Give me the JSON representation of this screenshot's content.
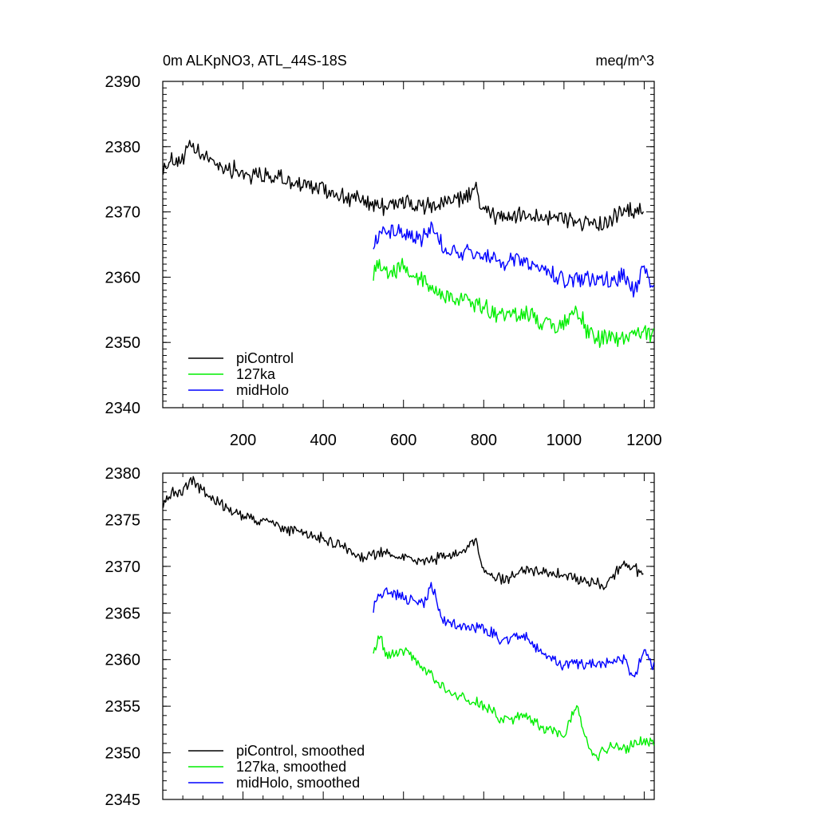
{
  "chart_data": [
    {
      "type": "line",
      "title_left": "0m ALKpNO3, ATL_44S-18S",
      "title_right": "meq/m^3",
      "xlabel": "",
      "ylabel": "",
      "xlim": [
        0,
        1225
      ],
      "ylim": [
        2340,
        2390
      ],
      "xticks": [
        200,
        400,
        600,
        800,
        1000,
        1200
      ],
      "xtick_labels": [
        "200",
        "400",
        "600",
        "800",
        "1000",
        "1200"
      ],
      "yticks": [
        2340,
        2350,
        2360,
        2370,
        2380,
        2390
      ],
      "ytick_labels": [
        "2340",
        "2350",
        "2360",
        "2370",
        "2380",
        "2390"
      ],
      "legend_position": "bottom-left",
      "series": [
        {
          "name": "piControl",
          "color": "#000000",
          "x": [
            1,
            25,
            50,
            70,
            100,
            150,
            200,
            250,
            300,
            350,
            400,
            450,
            500,
            550,
            600,
            650,
            700,
            750,
            780,
            800,
            850,
            900,
            950,
            1000,
            1050,
            1100,
            1150,
            1200
          ],
          "y": [
            2377,
            2378,
            2378,
            2380,
            2378.5,
            2377,
            2376,
            2375.5,
            2375,
            2374,
            2373.5,
            2372.5,
            2371.5,
            2371,
            2371.5,
            2370.5,
            2371.5,
            2372,
            2373.5,
            2370,
            2369,
            2369.5,
            2369.5,
            2369,
            2368.5,
            2368,
            2370,
            2370
          ]
        },
        {
          "name": "127ka",
          "color": "#00ee00",
          "x": [
            525,
            540,
            560,
            600,
            650,
            700,
            750,
            800,
            850,
            900,
            950,
            1000,
            1030,
            1060,
            1080,
            1100,
            1150,
            1200,
            1225
          ],
          "y": [
            2361,
            2363,
            2360.5,
            2361.5,
            2359.5,
            2357,
            2356.5,
            2355.5,
            2354,
            2354.5,
            2353,
            2352.5,
            2355.5,
            2351.5,
            2350,
            2351,
            2351,
            2351.5,
            2351
          ]
        },
        {
          "name": "midHolo",
          "color": "#0000ff",
          "x": [
            525,
            550,
            600,
            650,
            670,
            700,
            750,
            800,
            850,
            900,
            950,
            1000,
            1050,
            1100,
            1150,
            1175,
            1200,
            1225
          ],
          "y": [
            2365,
            2367.5,
            2366.5,
            2366,
            2368.5,
            2364,
            2363.5,
            2363.5,
            2362,
            2362.5,
            2361,
            2359.5,
            2359.5,
            2359.5,
            2360,
            2358,
            2361,
            2359
          ]
        }
      ]
    },
    {
      "type": "line",
      "xlabel": "",
      "ylabel": "",
      "xlim": [
        0,
        1225
      ],
      "ylim": [
        2345,
        2380
      ],
      "xticks": [
        200,
        400,
        600,
        800,
        1000,
        1200
      ],
      "yticks": [
        2345,
        2350,
        2355,
        2360,
        2365,
        2370,
        2375,
        2380
      ],
      "ytick_labels": [
        "2345",
        "2350",
        "2355",
        "2360",
        "2365",
        "2370",
        "2375",
        "2380"
      ],
      "legend_position": "bottom-left",
      "series": [
        {
          "name": "piControl, smoothed",
          "color": "#000000",
          "x": [
            1,
            25,
            50,
            70,
            100,
            150,
            200,
            250,
            300,
            350,
            400,
            450,
            500,
            550,
            600,
            650,
            700,
            750,
            780,
            800,
            850,
            900,
            950,
            1000,
            1050,
            1100,
            1150,
            1200
          ],
          "y": [
            2377,
            2378,
            2378,
            2379.5,
            2378,
            2376.5,
            2375.5,
            2375,
            2374,
            2373.5,
            2373,
            2372,
            2371,
            2371.5,
            2371,
            2370.5,
            2371,
            2371.5,
            2373,
            2369.5,
            2368.5,
            2369.5,
            2369.5,
            2369,
            2368.5,
            2368,
            2370.5,
            2369
          ]
        },
        {
          "name": "127ka, smoothed",
          "color": "#00ee00",
          "x": [
            525,
            540,
            560,
            600,
            650,
            700,
            750,
            800,
            850,
            900,
            950,
            1000,
            1030,
            1060,
            1080,
            1100,
            1150,
            1200,
            1225
          ],
          "y": [
            2361,
            2362.5,
            2360.5,
            2361,
            2359,
            2357,
            2356,
            2355,
            2353.5,
            2354,
            2352.5,
            2352,
            2355,
            2351,
            2349.5,
            2350.5,
            2350.5,
            2351.5,
            2351
          ]
        },
        {
          "name": "midHolo, smoothed",
          "color": "#0000ff",
          "x": [
            525,
            550,
            600,
            650,
            670,
            700,
            750,
            800,
            850,
            900,
            950,
            1000,
            1050,
            1100,
            1150,
            1175,
            1200,
            1225
          ],
          "y": [
            2365.5,
            2367.5,
            2366.5,
            2366,
            2368,
            2364,
            2363.5,
            2363.5,
            2362,
            2362.5,
            2360.5,
            2359.5,
            2359.5,
            2359.5,
            2360,
            2358,
            2361,
            2359
          ]
        }
      ]
    }
  ]
}
